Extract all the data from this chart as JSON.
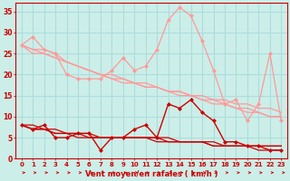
{
  "bg_color": "#cceee8",
  "grid_color": "#aadddd",
  "xlabel": "Vent moyen/en rafales ( km/h )",
  "xlim": [
    -0.5,
    23.5
  ],
  "ylim": [
    0,
    37
  ],
  "yticks": [
    0,
    5,
    10,
    15,
    20,
    25,
    30,
    35
  ],
  "xticks": [
    0,
    1,
    2,
    3,
    4,
    5,
    6,
    7,
    8,
    9,
    10,
    11,
    12,
    13,
    14,
    15,
    16,
    17,
    18,
    19,
    20,
    21,
    22,
    23
  ],
  "hours": [
    0,
    1,
    2,
    3,
    4,
    5,
    6,
    7,
    8,
    9,
    10,
    11,
    12,
    13,
    14,
    15,
    16,
    17,
    18,
    19,
    20,
    21,
    22,
    23
  ],
  "light_pink": "#ff9999",
  "dark_red": "#cc0000",
  "line_pink1": [
    27,
    29,
    26,
    25,
    20,
    19,
    19,
    19,
    21,
    24,
    21,
    22,
    26,
    33,
    36,
    34,
    28,
    21,
    13,
    14,
    9,
    13,
    25,
    9
  ],
  "line_pink2": [
    27,
    26,
    26,
    25,
    23,
    22,
    21,
    20,
    19,
    18,
    18,
    17,
    17,
    16,
    16,
    15,
    15,
    14,
    14,
    13,
    13,
    12,
    12,
    11
  ],
  "line_pink3": [
    27,
    26,
    25,
    24,
    23,
    22,
    21,
    20,
    20,
    19,
    18,
    18,
    17,
    16,
    16,
    15,
    14,
    14,
    13,
    12,
    12,
    11,
    10,
    10
  ],
  "line_pink4": [
    27,
    25,
    25,
    24,
    23,
    22,
    21,
    20,
    19,
    19,
    18,
    17,
    17,
    16,
    15,
    15,
    14,
    13,
    13,
    12,
    11,
    11,
    10,
    10
  ],
  "line_red1": [
    8,
    7,
    8,
    5,
    5,
    6,
    6,
    2,
    5,
    5,
    7,
    8,
    5,
    13,
    12,
    14,
    11,
    9,
    4,
    4,
    3,
    3,
    2,
    2
  ],
  "line_red2": [
    8,
    8,
    7,
    7,
    6,
    6,
    6,
    5,
    5,
    5,
    5,
    5,
    5,
    5,
    4,
    4,
    4,
    4,
    3,
    3,
    3,
    3,
    3,
    3
  ],
  "line_red3": [
    8,
    7,
    7,
    6,
    6,
    6,
    5,
    5,
    5,
    5,
    5,
    5,
    5,
    4,
    4,
    4,
    4,
    3,
    3,
    3,
    3,
    3,
    3,
    3
  ],
  "line_red4": [
    8,
    7,
    7,
    6,
    6,
    5,
    5,
    5,
    5,
    5,
    5,
    5,
    4,
    4,
    4,
    4,
    4,
    3,
    3,
    3,
    3,
    2,
    2,
    2
  ]
}
